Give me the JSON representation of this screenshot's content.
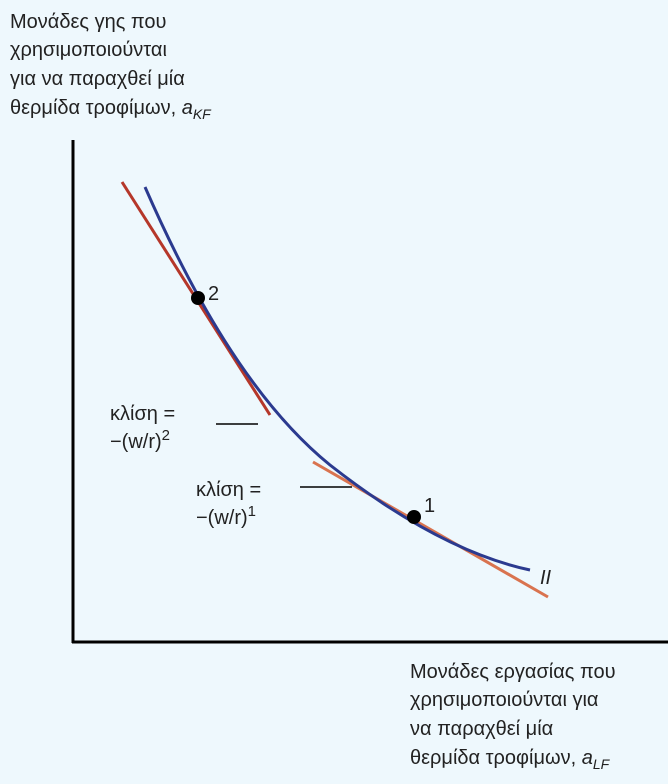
{
  "y_axis_label": {
    "lines": [
      "Μονάδες γης που",
      "χρησιμοποιούνται",
      "για να παραχθεί μία",
      "θερμίδα τροφίμων, "
    ],
    "variable": "a",
    "subscript": "KF"
  },
  "x_axis_label": {
    "lines": [
      "Μονάδες εργασίας που",
      "χρησιμοποιούνται για",
      "να παραχθεί μία",
      "θερμίδα τροφίμων, "
    ],
    "variable": "a",
    "subscript": "LF"
  },
  "points": [
    {
      "label": "1"
    },
    {
      "label": "2"
    }
  ],
  "slope_labels": [
    {
      "text": "κλίση =",
      "expression": "−(w/r)",
      "superscript": "2"
    },
    {
      "text": "κλίση =",
      "expression": "−(w/r)",
      "superscript": "1"
    }
  ],
  "curve_label": "II"
}
